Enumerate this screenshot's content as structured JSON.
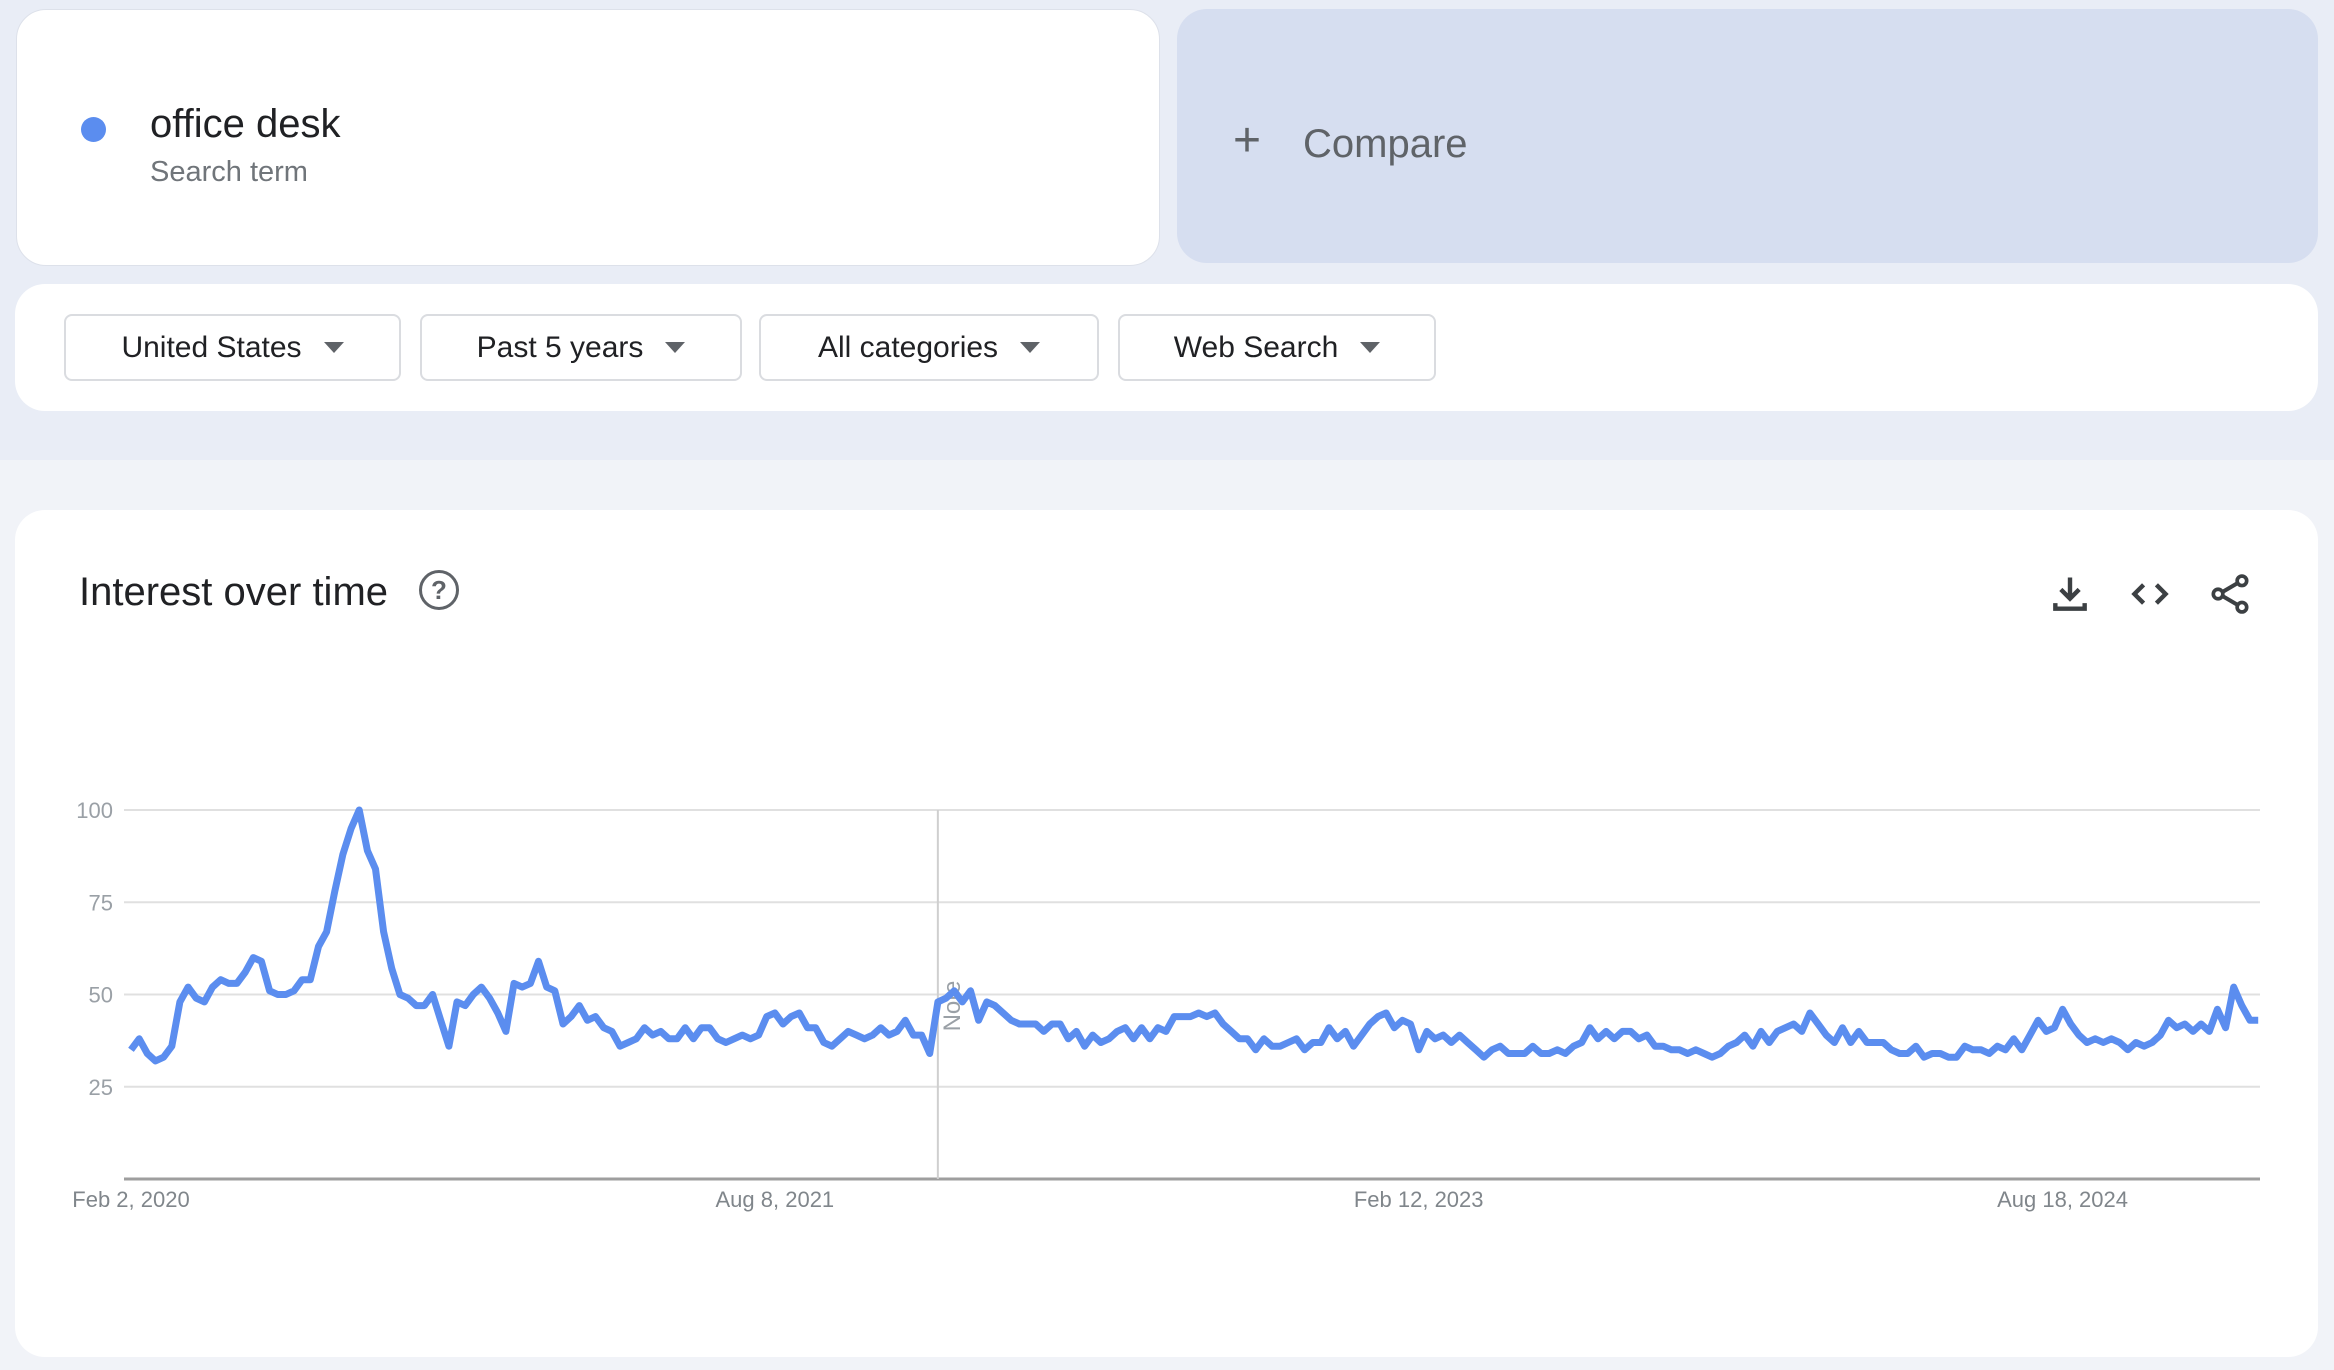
{
  "search_term": {
    "label": "office desk",
    "sublabel": "Search term",
    "color": "#5b8def"
  },
  "compare": {
    "icon": "plus-icon",
    "label": "Compare"
  },
  "filters": [
    {
      "label": "United States"
    },
    {
      "label": "Past 5 years"
    },
    {
      "label": "All categories"
    },
    {
      "label": "Web Search"
    }
  ],
  "chart_card": {
    "title": "Interest over time",
    "help_icon": "?",
    "actions": [
      "download-icon",
      "embed-code-icon",
      "share-icon"
    ]
  },
  "chart_data": {
    "type": "line",
    "title": "",
    "xlabel": "",
    "ylabel": "",
    "ylim": [
      0,
      100
    ],
    "yticks": [
      25,
      50,
      75,
      100
    ],
    "x_ticks": [
      "Feb 2, 2020",
      "Aug 8, 2021",
      "Feb 12, 2023",
      "Aug 18, 2024"
    ],
    "grid": true,
    "annotation": {
      "label": "Note",
      "week_index": 99
    },
    "series": [
      {
        "name": "office desk",
        "color": "#5b8def",
        "values": [
          35,
          38,
          34,
          32,
          33,
          36,
          48,
          52,
          49,
          48,
          52,
          54,
          53,
          53,
          56,
          60,
          59,
          51,
          50,
          50,
          51,
          54,
          54,
          63,
          67,
          78,
          88,
          95,
          100,
          89,
          84,
          67,
          57,
          50,
          49,
          47,
          47,
          50,
          43,
          36,
          48,
          47,
          50,
          52,
          49,
          45,
          40,
          53,
          52,
          53,
          59,
          52,
          51,
          42,
          44,
          47,
          43,
          44,
          41,
          40,
          36,
          37,
          38,
          41,
          39,
          40,
          38,
          38,
          41,
          38,
          41,
          41,
          38,
          37,
          38,
          39,
          38,
          39,
          44,
          45,
          42,
          44,
          45,
          41,
          41,
          37,
          36,
          38,
          40,
          39,
          38,
          39,
          41,
          39,
          40,
          43,
          39,
          39,
          34,
          48,
          49,
          51,
          48,
          51,
          43,
          48,
          47,
          45,
          43,
          42,
          42,
          42,
          40,
          42,
          42,
          38,
          40,
          36,
          39,
          37,
          38,
          40,
          41,
          38,
          41,
          38,
          41,
          40,
          44,
          44,
          44,
          45,
          44,
          45,
          42,
          40,
          38,
          38,
          35,
          38,
          36,
          36,
          37,
          38,
          35,
          37,
          37,
          41,
          38,
          40,
          36,
          39,
          42,
          44,
          45,
          41,
          43,
          42,
          35,
          40,
          38,
          39,
          37,
          39,
          37,
          35,
          33,
          35,
          36,
          34,
          34,
          34,
          36,
          34,
          34,
          35,
          34,
          36,
          37,
          41,
          38,
          40,
          38,
          40,
          40,
          38,
          39,
          36,
          36,
          35,
          35,
          34,
          35,
          34,
          33,
          34,
          36,
          37,
          39,
          36,
          40,
          37,
          40,
          41,
          42,
          40,
          45,
          42,
          39,
          37,
          41,
          37,
          40,
          37,
          37,
          37,
          35,
          34,
          34,
          36,
          33,
          34,
          34,
          33,
          33,
          36,
          35,
          35,
          34,
          36,
          35,
          38,
          35,
          39,
          43,
          40,
          41,
          46,
          42,
          39,
          37,
          38,
          37,
          38,
          37,
          35,
          37,
          36,
          37,
          39,
          43,
          41,
          42,
          40,
          42,
          40,
          46,
          41,
          52,
          47,
          43,
          43
        ]
      }
    ]
  }
}
